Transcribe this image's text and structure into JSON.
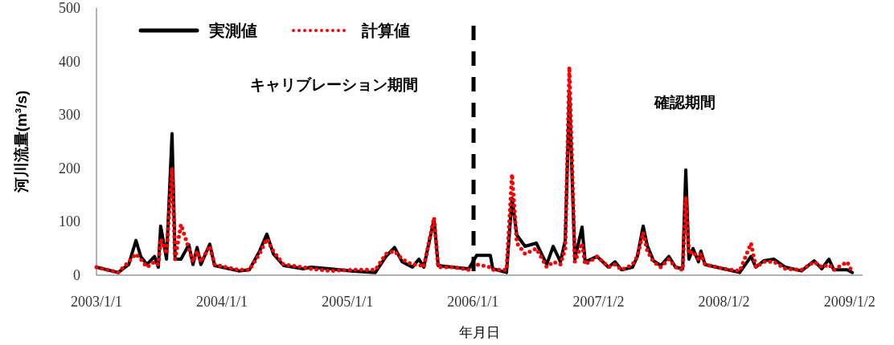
{
  "chart_data": {
    "type": "line",
    "xlabel": "年月日",
    "ylabel": "河川流量(m³/s)",
    "annotations": [
      "キャリブレーション期間",
      "確認期間"
    ],
    "x": [
      "2003-01-01",
      "2003-03-05",
      "2003-04-05",
      "2003-04-26",
      "2003-05-10",
      "2003-05-28",
      "2003-06-19",
      "2003-06-30",
      "2003-07-07",
      "2003-07-24",
      "2003-08-09",
      "2003-08-18",
      "2003-09-04",
      "2003-09-27",
      "2003-10-09",
      "2003-10-21",
      "2003-11-01",
      "2003-11-27",
      "2003-12-11",
      "2004-02-19",
      "2004-03-21",
      "2004-04-20",
      "2004-05-11",
      "2004-05-30",
      "2004-06-29",
      "2004-08-25",
      "2004-09-17",
      "2004-11-10",
      "2005-01-12",
      "2005-03-23",
      "2005-04-23",
      "2005-05-18",
      "2005-06-09",
      "2005-07-09",
      "2005-07-28",
      "2005-08-11",
      "2005-09-10",
      "2005-09-22",
      "2005-11-03",
      "2005-12-20",
      "2006-01-12",
      "2006-02-21",
      "2006-02-28",
      "2006-04-09",
      "2006-04-25",
      "2006-05-09",
      "2006-06-02",
      "2006-07-05",
      "2006-08-04",
      "2006-08-23",
      "2006-09-13",
      "2006-09-27",
      "2006-10-09",
      "2006-10-25",
      "2006-11-15",
      "2006-11-24",
      "2006-12-29",
      "2007-01-31",
      "2007-02-19",
      "2007-03-10",
      "2007-04-11",
      "2007-04-25",
      "2007-05-12",
      "2007-05-24",
      "2007-06-11",
      "2007-07-02",
      "2007-07-26",
      "2007-08-14",
      "2007-09-04",
      "2007-09-13",
      "2007-09-22",
      "2007-10-04",
      "2007-10-20",
      "2007-10-27",
      "2007-11-08",
      "2008-01-01",
      "2008-02-17",
      "2008-03-21",
      "2008-04-04",
      "2008-04-27",
      "2008-05-27",
      "2008-06-29",
      "2008-08-15",
      "2008-09-21",
      "2008-10-13",
      "2008-11-03",
      "2008-11-17",
      "2008-12-26",
      "2009-01-10"
    ],
    "series": [
      {
        "name": "実測値",
        "color": "#000000",
        "line_style": "solid",
        "values": [
          15,
          5,
          20,
          65,
          35,
          20,
          35,
          15,
          92,
          30,
          265,
          30,
          30,
          57,
          20,
          52,
          20,
          58,
          18,
          8,
          10,
          45,
          77,
          40,
          18,
          12,
          15,
          12,
          8,
          5,
          35,
          52,
          25,
          15,
          30,
          15,
          105,
          18,
          15,
          12,
          37,
          37,
          12,
          5,
          144,
          75,
          54,
          60,
          20,
          54,
          25,
          65,
          340,
          30,
          90,
          25,
          35,
          15,
          25,
          10,
          15,
          35,
          92,
          55,
          27,
          18,
          35,
          15,
          12,
          197,
          30,
          50,
          25,
          45,
          20,
          12,
          5,
          35,
          15,
          27,
          30,
          15,
          8,
          27,
          12,
          30,
          10,
          10,
          5
        ]
      },
      {
        "name": "計算値",
        "color": "#ff0000",
        "line_style": "dotted",
        "values": [
          15,
          5,
          25,
          40,
          30,
          15,
          25,
          20,
          68,
          40,
          200,
          30,
          95,
          50,
          25,
          45,
          25,
          55,
          20,
          10,
          10,
          40,
          68,
          45,
          20,
          15,
          12,
          8,
          10,
          10,
          40,
          45,
          30,
          20,
          20,
          15,
          108,
          15,
          15,
          10,
          20,
          15,
          10,
          10,
          189,
          60,
          40,
          50,
          15,
          25,
          20,
          50,
          390,
          25,
          60,
          20,
          35,
          15,
          20,
          10,
          20,
          35,
          80,
          45,
          25,
          15,
          30,
          15,
          10,
          147,
          40,
          45,
          30,
          40,
          20,
          12,
          8,
          60,
          15,
          25,
          25,
          12,
          10,
          25,
          15,
          20,
          10,
          25,
          5
        ]
      }
    ],
    "xlim": [
      "2003-01-01",
      "2009-02-09"
    ],
    "xticks": [
      {
        "value": "2003-01-01",
        "label": "2003/1/1"
      },
      {
        "value": "2004-01-01",
        "label": "2004/1/1"
      },
      {
        "value": "2005-01-01",
        "label": "2005/1/1"
      },
      {
        "value": "2006-01-01",
        "label": "2006/1/1"
      },
      {
        "value": "2007-01-02",
        "label": "2007/1/2"
      },
      {
        "value": "2008-01-02",
        "label": "2008/1/2"
      },
      {
        "value": "2009-01-02",
        "label": "2009/1/2"
      }
    ],
    "ylim": [
      0,
      500
    ],
    "yticks": [
      0,
      100,
      200,
      300,
      400,
      500
    ],
    "legend": "top left",
    "ref_lines": [
      {
        "axis": "x",
        "value": "2006-01-03",
        "color": "#000000",
        "line_style": "dashed"
      }
    ]
  }
}
